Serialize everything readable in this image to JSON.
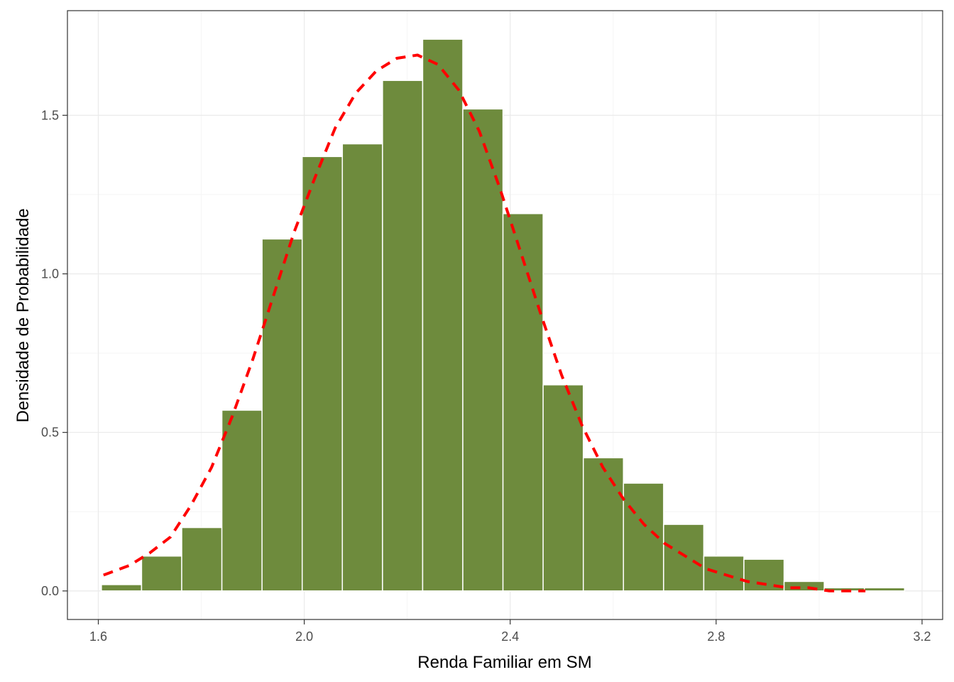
{
  "chart_data": {
    "type": "bar",
    "subtype": "histogram_with_density_curve",
    "title": "",
    "xlabel": "Renda Familiar em SM",
    "ylabel": "Densidade de Probabilidade",
    "xlim": [
      1.54,
      3.24
    ],
    "ylim": [
      -0.09,
      1.83
    ],
    "x_ticks": [
      1.6,
      2.0,
      2.4,
      2.8,
      3.2
    ],
    "x_tick_labels": [
      "1.6",
      "2.0",
      "2.4",
      "2.8",
      "3.2"
    ],
    "y_ticks": [
      0.0,
      0.5,
      1.0,
      1.5
    ],
    "y_tick_labels": [
      "0.0",
      "0.5",
      "1.0",
      "1.5"
    ],
    "grid": true,
    "legend": "none",
    "colors": {
      "bar_fill": "#6e8b3d",
      "bar_border": "#ffffff",
      "density_line": "#ff0000",
      "panel_border": "#333333",
      "grid_major": "#ebebeb",
      "grid_minor": "#f5f5f5"
    },
    "bins": {
      "edges": [
        1.606,
        1.684,
        1.762,
        1.84,
        1.918,
        1.996,
        2.074,
        2.152,
        2.23,
        2.308,
        2.386,
        2.464,
        2.542,
        2.62,
        2.698,
        2.776,
        2.854,
        2.932,
        3.01,
        3.088,
        3.166
      ],
      "values": [
        0.02,
        0.11,
        0.2,
        0.57,
        1.11,
        1.37,
        1.41,
        1.61,
        1.74,
        1.52,
        1.19,
        0.65,
        0.42,
        0.34,
        0.21,
        0.11,
        0.1,
        0.03,
        0.01,
        0.01
      ]
    },
    "series": [
      {
        "type": "line",
        "style": "dashed",
        "x": [
          1.61,
          1.66,
          1.7,
          1.74,
          1.78,
          1.82,
          1.86,
          1.9,
          1.94,
          1.98,
          2.02,
          2.06,
          2.1,
          2.14,
          2.18,
          2.22,
          2.26,
          2.3,
          2.34,
          2.38,
          2.42,
          2.46,
          2.5,
          2.54,
          2.58,
          2.62,
          2.66,
          2.7,
          2.74,
          2.78,
          2.82,
          2.86,
          2.9,
          2.94,
          2.98,
          3.02,
          3.06,
          3.09
        ],
        "values": [
          0.05,
          0.08,
          0.12,
          0.17,
          0.27,
          0.39,
          0.55,
          0.73,
          0.93,
          1.13,
          1.3,
          1.46,
          1.57,
          1.64,
          1.68,
          1.69,
          1.66,
          1.58,
          1.45,
          1.27,
          1.07,
          0.87,
          0.68,
          0.52,
          0.39,
          0.29,
          0.21,
          0.15,
          0.11,
          0.07,
          0.05,
          0.03,
          0.02,
          0.01,
          0.01,
          0.0,
          0.0,
          0.0
        ]
      }
    ]
  }
}
